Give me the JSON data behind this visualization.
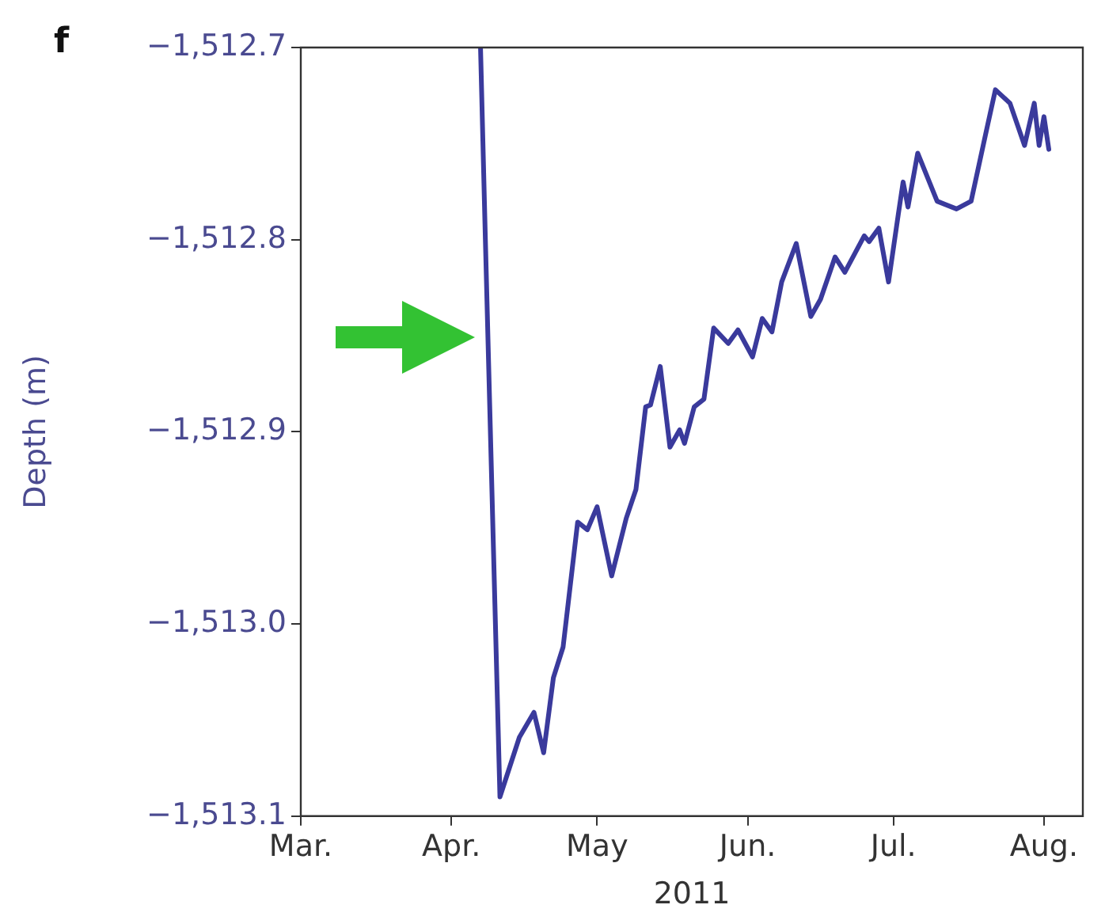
{
  "chart_data": {
    "type": "line",
    "xlabel": "2011",
    "ylabel": "Depth (m)",
    "annotations": [
      "f"
    ],
    "x": [
      "2011-04-07",
      "2011-04-08",
      "2011-04-11",
      "2011-04-15",
      "2011-04-18",
      "2011-04-20",
      "2011-04-22",
      "2011-04-24",
      "2011-04-27",
      "2011-04-29",
      "2011-05-01",
      "2011-05-04",
      "2011-05-07",
      "2011-05-09",
      "2011-05-11",
      "2011-05-12",
      "2011-05-14",
      "2011-05-16",
      "2011-05-18",
      "2011-05-19",
      "2011-05-21",
      "2011-05-23",
      "2011-05-25",
      "2011-05-28",
      "2011-05-30",
      "2011-06-02",
      "2011-06-04",
      "2011-06-06",
      "2011-06-08",
      "2011-06-11",
      "2011-06-14",
      "2011-06-16",
      "2011-06-19",
      "2011-06-21",
      "2011-06-25",
      "2011-06-26",
      "2011-06-28",
      "2011-06-30",
      "2011-07-02",
      "2011-07-03",
      "2011-07-04",
      "2011-07-06",
      "2011-07-10",
      "2011-07-14",
      "2011-07-17",
      "2011-07-20",
      "2011-07-22",
      "2011-07-25",
      "2011-07-28",
      "2011-07-30",
      "2011-07-31",
      "2011-08-01",
      "2011-08-02"
    ],
    "series": [
      {
        "color": "#3a3a9c",
        "values": [
          -1512.7,
          -1512.8,
          -1513.09,
          -1513.059,
          -1513.046,
          -1513.067,
          -1513.028,
          -1513.012,
          -1512.947,
          -1512.951,
          -1512.939,
          -1512.975,
          -1512.945,
          -1512.93,
          -1512.887,
          -1512.886,
          -1512.866,
          -1512.908,
          -1512.899,
          -1512.906,
          -1512.887,
          -1512.883,
          -1512.846,
          -1512.854,
          -1512.847,
          -1512.861,
          -1512.841,
          -1512.848,
          -1512.822,
          -1512.802,
          -1512.84,
          -1512.831,
          -1512.809,
          -1512.817,
          -1512.798,
          -1512.801,
          -1512.794,
          -1512.822,
          -1512.787,
          -1512.77,
          -1512.783,
          -1512.755,
          -1512.78,
          -1512.784,
          -1512.78,
          -1512.745,
          -1512.722,
          -1512.729,
          -1512.751,
          -1512.729,
          -1512.751,
          -1512.736,
          -1512.753
        ]
      }
    ],
    "xlim": [
      "2011-03-01",
      "2011-08-09"
    ],
    "xticks": [
      {
        "value": "2011-03-01",
        "label": "Mar."
      },
      {
        "value": "2011-04-01",
        "label": "Apr."
      },
      {
        "value": "2011-05-01",
        "label": "May"
      },
      {
        "value": "2011-06-01",
        "label": "Jun."
      },
      {
        "value": "2011-07-01",
        "label": "Jul."
      },
      {
        "value": "2011-08-01",
        "label": "Aug."
      }
    ],
    "ylim": [
      -1513.1,
      -1512.7
    ],
    "yticks": [
      {
        "value": -1513.1,
        "label": "−1,513.1"
      },
      {
        "value": -1513.0,
        "label": "−1,513.0"
      },
      {
        "value": -1512.9,
        "label": "−1,512.9"
      },
      {
        "value": -1512.8,
        "label": "−1,512.8"
      },
      {
        "value": -1512.7,
        "label": "−1,512.7"
      }
    ],
    "grid": false,
    "legend": false,
    "marker": "none",
    "line_style": "solid"
  }
}
